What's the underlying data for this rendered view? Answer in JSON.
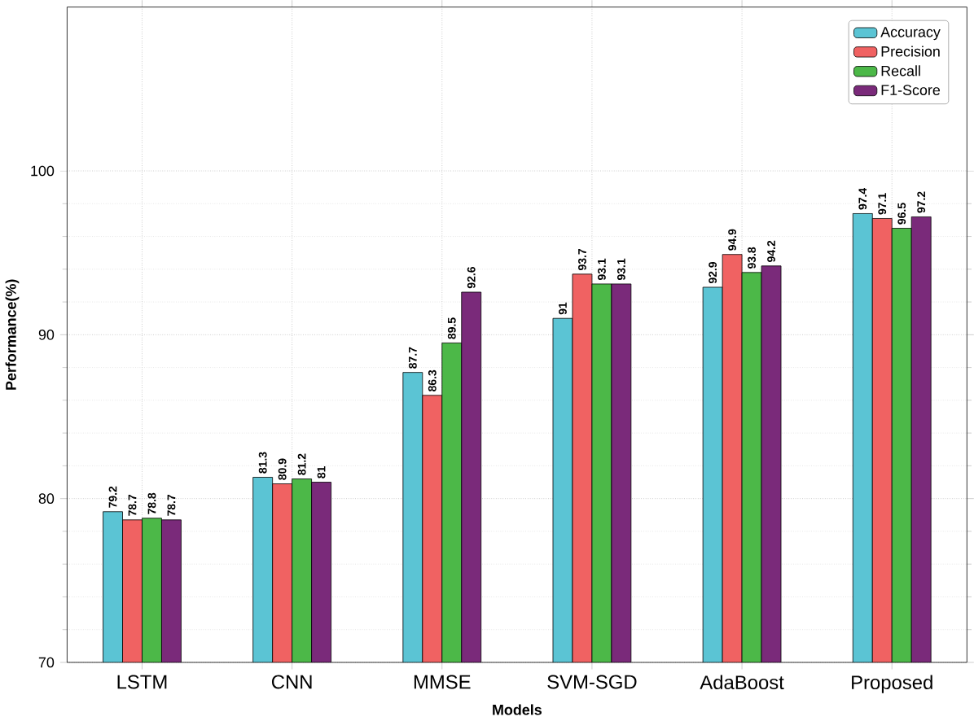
{
  "chart_data": {
    "type": "bar",
    "xlabel": "Models",
    "ylabel": "Performance(%)",
    "categories": [
      "LSTM",
      "CNN",
      "MMSE",
      "SVM-SGD",
      "AdaBoost",
      "Proposed"
    ],
    "series": [
      {
        "name": "Accuracy",
        "color": "#5bc4d4",
        "values": [
          79.2,
          81.3,
          87.7,
          91,
          92.9,
          97.4
        ]
      },
      {
        "name": "Precision",
        "color": "#f06262",
        "values": [
          78.7,
          80.9,
          86.3,
          93.7,
          94.9,
          97.1
        ]
      },
      {
        "name": "Recall",
        "color": "#4cb848",
        "values": [
          78.8,
          81.2,
          89.5,
          93.1,
          93.8,
          96.5
        ]
      },
      {
        "name": "F1-Score",
        "color": "#7a2a7a",
        "values": [
          78.7,
          81,
          92.6,
          93.1,
          94.2,
          97.2
        ]
      }
    ],
    "ylim": [
      70,
      110
    ],
    "yticks": [
      70,
      80,
      90,
      100
    ],
    "grid": true,
    "legend": "top right",
    "data_labels": true
  }
}
